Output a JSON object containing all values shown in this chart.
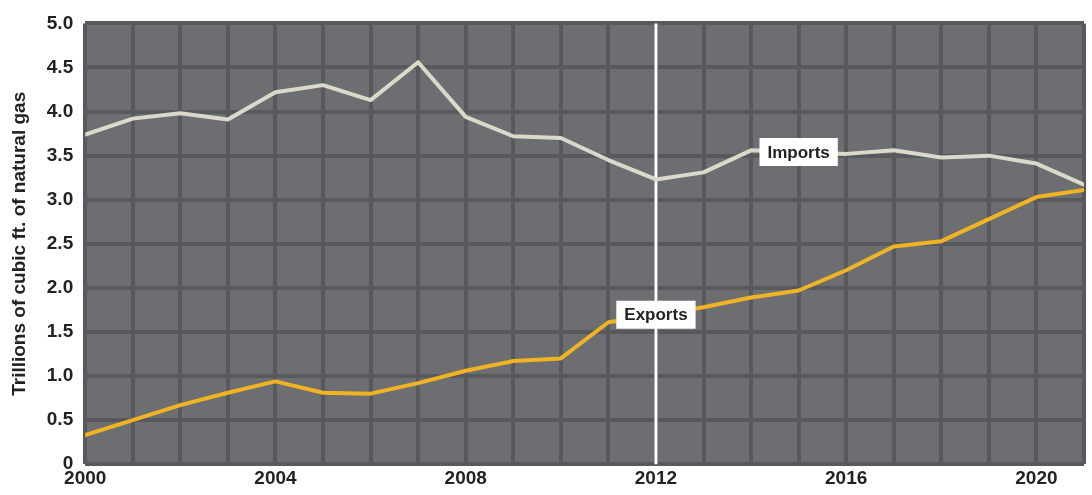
{
  "chart_data": {
    "type": "line",
    "ylabel": "Trillions of cubic ft. of natural gas",
    "x": [
      2000,
      2001,
      2002,
      2003,
      2004,
      2005,
      2006,
      2007,
      2008,
      2009,
      2010,
      2011,
      2012,
      2013,
      2014,
      2015,
      2016,
      2017,
      2018,
      2019,
      2020,
      2021
    ],
    "series": [
      {
        "name": "Imports",
        "color": "#dcd9cb",
        "values": [
          3.74,
          3.92,
          3.98,
          3.91,
          4.22,
          4.3,
          4.13,
          4.56,
          3.94,
          3.72,
          3.7,
          3.45,
          3.23,
          3.31,
          3.56,
          null,
          3.52,
          3.56,
          3.48,
          3.5,
          3.41,
          3.17
        ]
      },
      {
        "name": "Exports",
        "color": "#f0b323",
        "values": [
          0.33,
          0.5,
          0.67,
          0.81,
          0.94,
          0.81,
          0.8,
          0.92,
          1.06,
          1.17,
          1.2,
          1.61,
          null,
          1.78,
          1.89,
          1.97,
          2.2,
          2.47,
          2.53,
          2.78,
          3.03,
          3.11
        ]
      }
    ],
    "xlim": [
      2000,
      2021
    ],
    "xticks": [
      2000,
      {
        "value": 2001,
        "label": null
      },
      {
        "value": 2002,
        "label": null
      },
      {
        "value": 2003,
        "label": null
      },
      2004,
      {
        "value": 2005,
        "label": null
      },
      {
        "value": 2006,
        "label": null
      },
      {
        "value": 2007,
        "label": null
      },
      2008,
      {
        "value": 2009,
        "label": null
      },
      {
        "value": 2010,
        "label": null
      },
      {
        "value": 2011,
        "label": null
      },
      2012,
      {
        "value": 2013,
        "label": null
      },
      {
        "value": 2014,
        "label": null
      },
      {
        "value": 2015,
        "label": null
      },
      2016,
      {
        "value": 2017,
        "label": null
      },
      {
        "value": 2018,
        "label": null
      },
      {
        "value": 2019,
        "label": null
      },
      2020,
      {
        "value": 2021,
        "label": null
      }
    ],
    "ylim": [
      0,
      5
    ],
    "yticks": [
      0,
      {
        "value": 0.5,
        "label": "0.5"
      },
      {
        "value": 1,
        "label": "1.0"
      },
      {
        "value": 1.5,
        "label": "1.5"
      },
      {
        "value": 2,
        "label": "2.0"
      },
      {
        "value": 2.5,
        "label": "2.5"
      },
      {
        "value": 3,
        "label": "3.0"
      },
      {
        "value": 3.5,
        "label": "3.5"
      },
      {
        "value": 4,
        "label": "4.0"
      },
      {
        "value": 4.5,
        "label": "4.5"
      },
      {
        "value": 5,
        "label": "5.0"
      }
    ],
    "ref_lines": [
      {
        "axis": "x",
        "value": 2012,
        "color": "#ffffff"
      }
    ],
    "grid": true,
    "legend": false,
    "marker": "none",
    "line_style": "solid"
  }
}
